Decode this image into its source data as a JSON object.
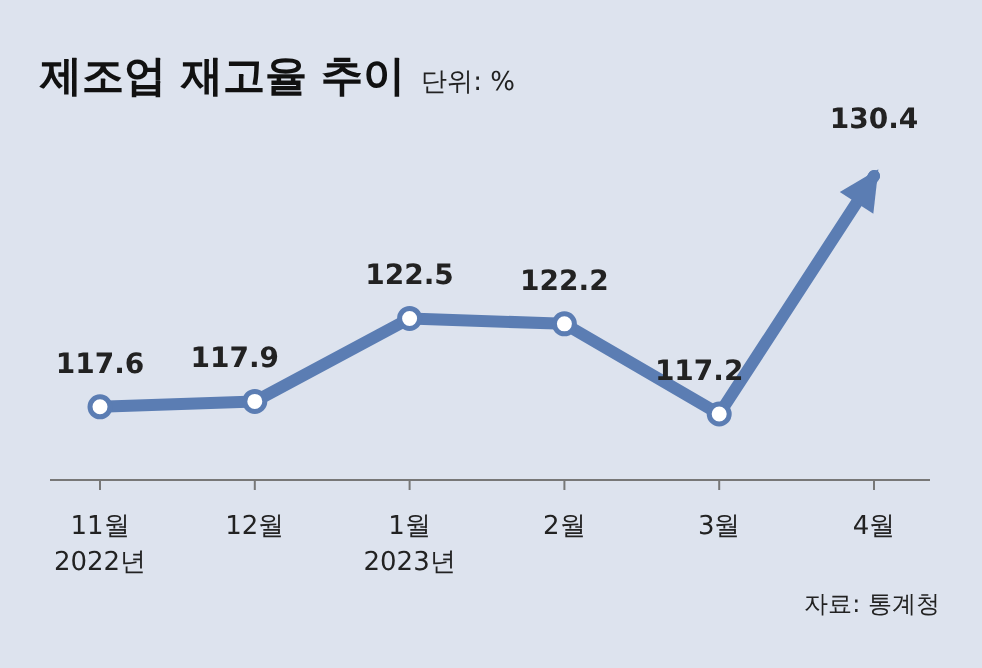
{
  "chart_data": {
    "type": "line",
    "title": "제조업 재고율 추이",
    "subtitle": "단위: %",
    "categories": [
      "11월\n2022년",
      "12월",
      "1월\n2023년",
      "2월",
      "3월",
      "4월"
    ],
    "series": [
      {
        "color": "#5b7db3",
        "values": [
          117.6,
          117.9,
          122.5,
          122.2,
          117.2,
          130.4
        ]
      }
    ],
    "data_labels": true,
    "marker": "circle",
    "annotations": [
      "자료: 통계청"
    ]
  }
}
